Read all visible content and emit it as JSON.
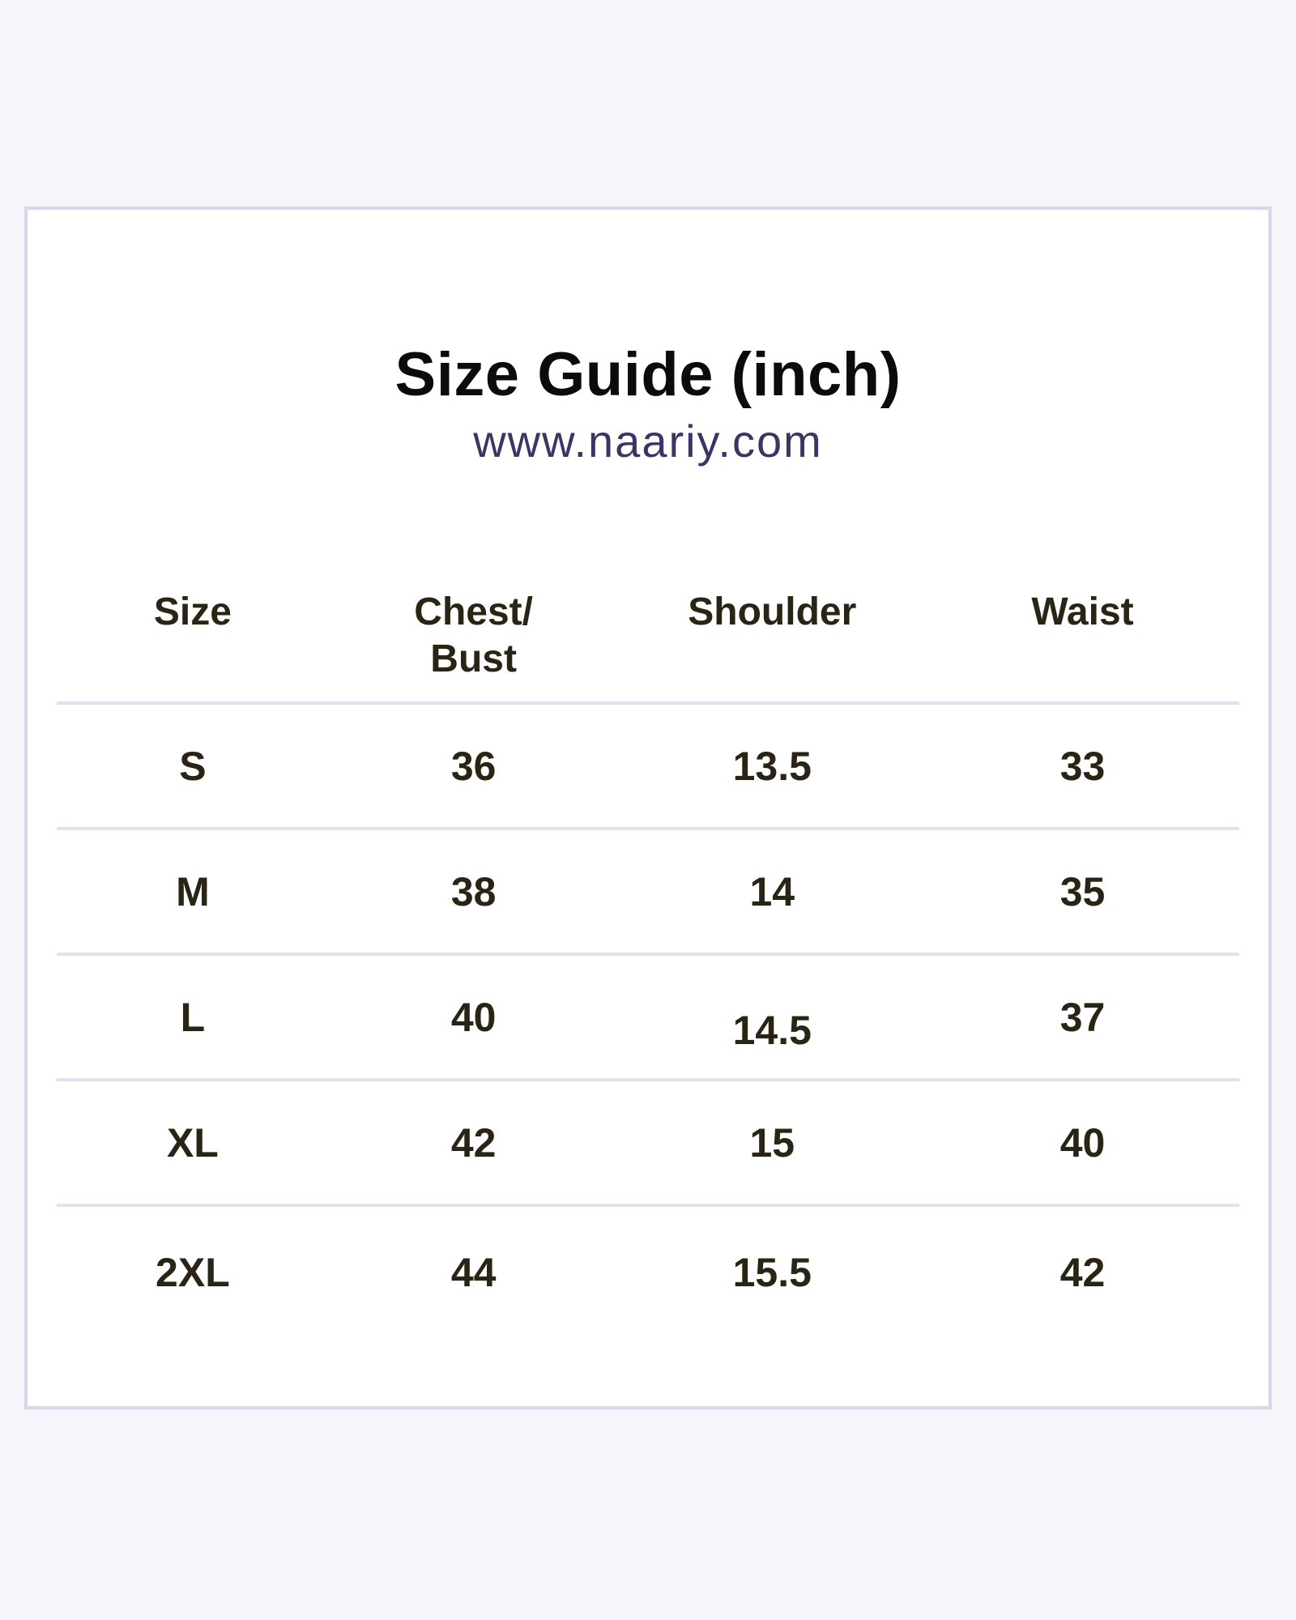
{
  "page": {
    "title": "Size Guide (inch)",
    "website": "www.naariy.com"
  },
  "colors": {
    "background": "#f7f5fc",
    "card_background": "#ffffff",
    "card_border": "#d9d5ec",
    "divider": "#e3e0f1",
    "title_text": "#0b0b0b",
    "website_text": "#3b3565",
    "table_text": "#2a2415"
  },
  "table": {
    "headers": {
      "size": "Size",
      "chest_bust": "Chest/\nBust",
      "shoulder": "Shoulder",
      "waist": "Waist"
    },
    "rows": [
      {
        "size": "S",
        "chest_bust": "36",
        "shoulder": "13.5",
        "waist": "33"
      },
      {
        "size": "M",
        "chest_bust": "38",
        "shoulder": "14",
        "waist": "35"
      },
      {
        "size": "L",
        "chest_bust": "40",
        "shoulder": "14.5",
        "waist": "37"
      },
      {
        "size": "XL",
        "chest_bust": "42",
        "shoulder": "15",
        "waist": "40"
      },
      {
        "size": "2XL",
        "chest_bust": "44",
        "shoulder": "15.5",
        "waist": "42"
      }
    ]
  },
  "chart_data": {
    "type": "table",
    "title": "Size Guide (inch)",
    "subtitle": "www.naariy.com",
    "units": "inch",
    "columns": [
      "Size",
      "Chest/Bust",
      "Shoulder",
      "Waist"
    ],
    "rows": [
      [
        "S",
        36,
        13.5,
        33
      ],
      [
        "M",
        38,
        14,
        35
      ],
      [
        "L",
        40,
        14.5,
        37
      ],
      [
        "XL",
        42,
        15,
        40
      ],
      [
        "2XL",
        44,
        15.5,
        42
      ]
    ]
  }
}
